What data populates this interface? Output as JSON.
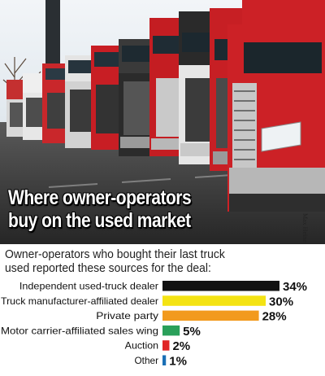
{
  "headline": {
    "line1": "Where owner-operators",
    "line2": "buy on the used market"
  },
  "photo_credit": "Max Heine",
  "intro": {
    "line1": "Owner-operators who bought their last truck",
    "line2": "used reported these sources for the deal:"
  },
  "colors": {
    "sky": "#dde7ef",
    "truck_red": "#c8201f",
    "asphalt": "#3a3a3a"
  },
  "chart_data": {
    "type": "bar",
    "orientation": "horizontal",
    "title": "",
    "xlabel": "",
    "ylabel": "",
    "xlim": [
      0,
      34
    ],
    "grid": false,
    "categories": [
      "Independent used-truck dealer",
      "Truck manufacturer-affiliated dealer",
      "Private party",
      "Motor carrier-affiliated sales wing",
      "Auction",
      "Other"
    ],
    "values": [
      34,
      30,
      28,
      5,
      2,
      1
    ],
    "value_labels": [
      "34%",
      "30%",
      "28%",
      "5%",
      "2%",
      "1%"
    ],
    "colors": [
      "#111111",
      "#f4e313",
      "#f29a1e",
      "#2aa05a",
      "#e02626",
      "#1a6fb5"
    ]
  }
}
